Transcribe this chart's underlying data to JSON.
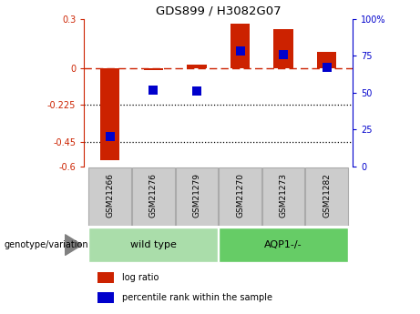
{
  "title": "GDS899 / H3082G07",
  "categories": [
    "GSM21266",
    "GSM21276",
    "GSM21279",
    "GSM21270",
    "GSM21273",
    "GSM21282"
  ],
  "log_ratio": [
    -0.56,
    -0.01,
    0.02,
    0.27,
    0.24,
    0.1
  ],
  "percentile_rank": [
    20,
    52,
    51,
    78,
    76,
    67
  ],
  "left_ylim": [
    -0.6,
    0.3
  ],
  "right_ylim": [
    0,
    100
  ],
  "left_yticks": [
    -0.6,
    -0.45,
    -0.225,
    0,
    0.3
  ],
  "right_yticks": [
    0,
    25,
    50,
    75,
    100
  ],
  "left_ytick_labels": [
    "-0.6",
    "-0.45",
    "-0.225",
    "0",
    "0.3"
  ],
  "right_ytick_labels": [
    "0",
    "25",
    "50",
    "75",
    "100%"
  ],
  "hlines": [
    -0.225,
    -0.45
  ],
  "bar_color": "#cc2200",
  "dot_color": "#0000cc",
  "zero_line_color": "#cc2200",
  "hline_color": "#000000",
  "genotype_label": "genotype/variation",
  "wt_label": "wild type",
  "aqp1_label": "AQP1-/-",
  "wt_color": "#aaddaa",
  "aqp1_color": "#66cc66",
  "legend_log_ratio": "log ratio",
  "legend_percentile": "percentile rank within the sample",
  "bar_width": 0.45,
  "dot_size": 55,
  "label_box_color": "#cccccc",
  "label_box_edge": "#aaaaaa"
}
